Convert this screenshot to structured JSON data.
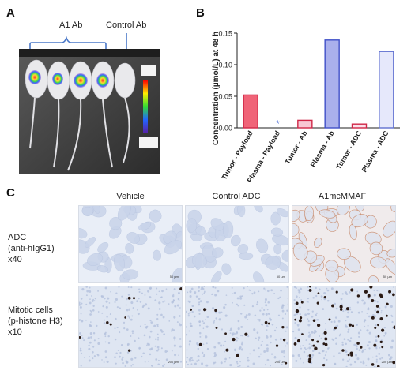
{
  "panel_a": {
    "letter": "A",
    "group_label_a1": "A1 Ab",
    "group_label_control": "Control Ab"
  },
  "panel_b": {
    "letter": "B"
  },
  "panel_c": {
    "letter": "C",
    "columns": [
      "Vehicle",
      "Control ADC",
      "A1mcMMAF"
    ],
    "rows": [
      {
        "lines": [
          "ADC",
          "(anti-hIgG1)",
          "x40"
        ],
        "scale": "50 µm"
      },
      {
        "lines": [
          "Mitotic cells",
          "(p-histone H3)",
          "x10"
        ],
        "scale": "200 µm"
      }
    ]
  },
  "chart_data": {
    "type": "bar",
    "ylabel": "Concentration (µmol/L) at 48 h",
    "ylim": [
      0,
      0.15
    ],
    "yticks": [
      "0.00",
      "0.05",
      "0.10",
      "0.15"
    ],
    "categories": [
      "Tumor - Payload",
      "Plasma - Payload",
      "Tumor - Ab",
      "Plasma - Ab",
      "Tumor - ADC",
      "Plasma - ADC"
    ],
    "values": [
      0.052,
      0.0,
      0.012,
      0.139,
      0.006,
      0.121
    ],
    "fills": [
      "#f06478",
      "#ffffff",
      "#f8c8d4",
      "#aab0ec",
      "#fbe0ea",
      "#e6e8fb"
    ],
    "strokes": [
      "#d02848",
      "#ffffff",
      "#d02848",
      "#4050c8",
      "#d02848",
      "#6070d0"
    ],
    "annotation": "*",
    "annotation_color": "#5a78d8"
  }
}
